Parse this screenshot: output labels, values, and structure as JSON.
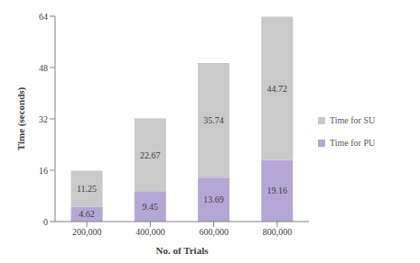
{
  "chart_data": {
    "type": "bar",
    "stacked": true,
    "x_label": "No. of Trials",
    "y_label": "Time (seconds)",
    "categories": [
      "200,000",
      "400,000",
      "600,000",
      "800,000"
    ],
    "series": [
      {
        "name": "Time for PU",
        "color": "#b4a7d6",
        "values": [
          4.62,
          9.45,
          13.69,
          19.16
        ]
      },
      {
        "name": "Time for SU",
        "color": "#c9c9c9",
        "values": [
          11.25,
          22.67,
          35.74,
          44.72
        ]
      }
    ],
    "ylim": [
      0,
      64
    ],
    "yticks": [
      0,
      16,
      32,
      48,
      64
    ],
    "grid": false,
    "legend": "right",
    "data_labels": true
  }
}
